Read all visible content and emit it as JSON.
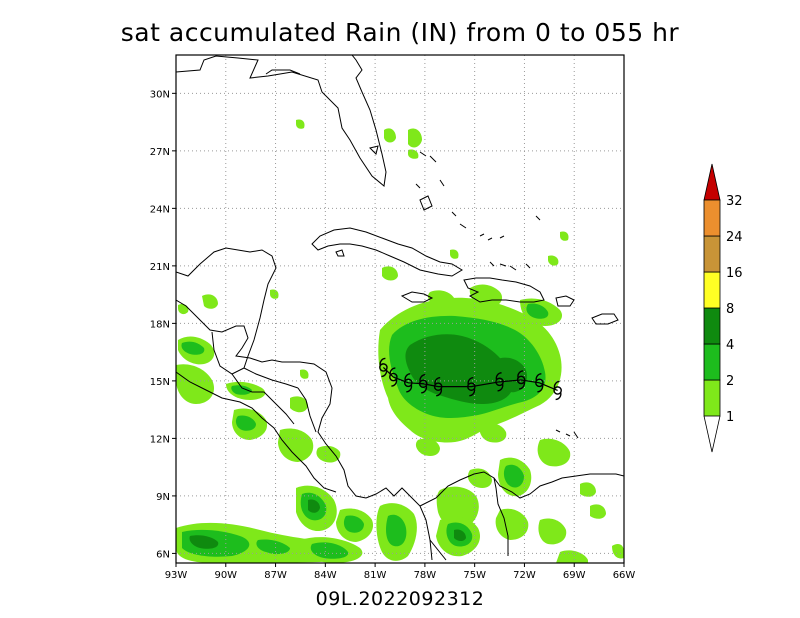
{
  "title": "sat accumulated Rain (IN) from 0 to 055 hr",
  "footer": "09L.2022092312",
  "map": {
    "lon_range": [
      -93,
      -66
    ],
    "lat_range": [
      5.5,
      32
    ],
    "lon_ticks": [
      "93W",
      "90W",
      "87W",
      "84W",
      "81W",
      "78W",
      "75W",
      "72W",
      "69W",
      "66W"
    ],
    "lat_ticks": [
      "6N",
      "9N",
      "12N",
      "15N",
      "18N",
      "21N",
      "24N",
      "27N",
      "30N"
    ],
    "gridlines": true
  },
  "colorbar": {
    "levels": [
      "1",
      "2",
      "4",
      "8",
      "16",
      "24",
      "32"
    ],
    "colors": [
      "#7fe81a",
      "#1dbd1d",
      "#0f8a0f",
      "#ffff24",
      "#c89437",
      "#ec8f2e",
      "#c40000"
    ]
  },
  "storm_symbol": "tropical-storm-symbol",
  "storm_track": [
    {
      "lon": -80.5,
      "lat": 15.7
    },
    {
      "lon": -79.9,
      "lat": 15.2
    },
    {
      "lon": -79.0,
      "lat": 14.9
    },
    {
      "lon": -78.1,
      "lat": 14.85
    },
    {
      "lon": -77.2,
      "lat": 14.7
    },
    {
      "lon": -75.2,
      "lat": 14.7
    },
    {
      "lon": -73.5,
      "lat": 14.95
    },
    {
      "lon": -72.2,
      "lat": 15.05
    },
    {
      "lon": -71.1,
      "lat": 14.9
    },
    {
      "lon": -70.0,
      "lat": 14.5
    }
  ]
}
